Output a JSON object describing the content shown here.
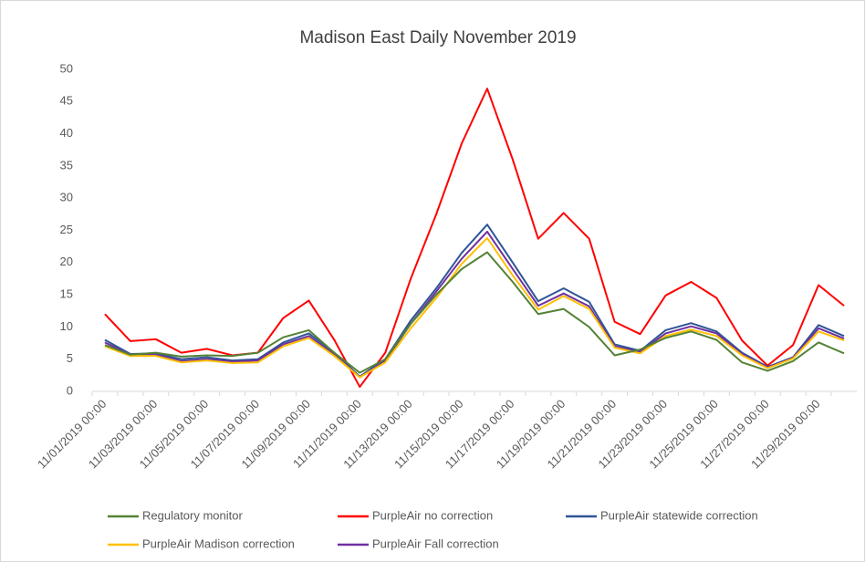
{
  "chart_data": {
    "type": "line",
    "title": "Madison East Daily November 2019",
    "categories": [
      "11/01/2019 00:00",
      null,
      "11/03/2019 00:00",
      null,
      "11/05/2019 00:00",
      null,
      "11/07/2019 00:00",
      null,
      "11/09/2019 00:00",
      null,
      "11/11/2019 00:00",
      null,
      "11/13/2019 00:00",
      null,
      "11/15/2019 00:00",
      null,
      "11/17/2019 00:00",
      null,
      "11/19/2019 00:00",
      null,
      "11/21/2019 00:00",
      null,
      "11/23/2019 00:00",
      null,
      "11/25/2019 00:00",
      null,
      "11/27/2019 00:00",
      null,
      "11/29/2019 00:00",
      null
    ],
    "series": [
      {
        "name": "PurpleAir no correction",
        "color": "#ff0000",
        "values": [
          12,
          7.8,
          8.1,
          6,
          6.6,
          5.6,
          6,
          11.4,
          14.1,
          8,
          0.7,
          6,
          17.5,
          27.5,
          38.5,
          47,
          36,
          23.7,
          27.7,
          23.7,
          10.8,
          8.9,
          14.9,
          17,
          14.5,
          7.9,
          4,
          7.2,
          16.5,
          13.3
        ]
      },
      {
        "name": "PurpleAir statewide correction",
        "color": "#2f5597",
        "values": [
          8,
          5.8,
          5.9,
          5,
          5.3,
          4.8,
          5,
          7.6,
          9,
          6,
          2.3,
          5,
          11,
          16,
          21.5,
          25.9,
          20,
          14,
          16,
          13.9,
          7.3,
          6.3,
          9.5,
          10.6,
          9.3,
          6,
          3.8,
          5.3,
          10.3,
          8.6
        ]
      },
      {
        "name": "PurpleAir Fall correction",
        "color": "#7030a0",
        "values": [
          7.6,
          5.7,
          5.7,
          4.7,
          5,
          4.6,
          4.8,
          7.3,
          8.6,
          5.7,
          2.2,
          4.7,
          10.5,
          15.5,
          20.6,
          24.8,
          19,
          13.3,
          15.2,
          13.2,
          7,
          6.1,
          9,
          10.1,
          9,
          5.8,
          3.7,
          5.2,
          9.8,
          8.2
        ]
      },
      {
        "name": "PurpleAir Madison correction",
        "color": "#ffc000",
        "values": [
          7,
          5.5,
          5.5,
          4.5,
          4.8,
          4.4,
          4.5,
          7,
          8.3,
          5.5,
          2.2,
          4.5,
          9.8,
          14.5,
          19.8,
          23.8,
          18,
          12.7,
          14.8,
          12.8,
          6.8,
          5.9,
          8.6,
          9.6,
          8.6,
          5.6,
          3.6,
          5.1,
          9.3,
          7.9
        ]
      },
      {
        "name": "Regulatory monitor",
        "color": "#548235",
        "values": [
          7.2,
          5.7,
          6,
          5.4,
          5.6,
          5.5,
          6,
          8.4,
          9.5,
          6,
          2.9,
          5,
          10.5,
          15,
          19,
          21.6,
          17,
          12,
          12.8,
          10,
          5.6,
          6.5,
          8.3,
          9.3,
          8,
          4.5,
          3.2,
          4.7,
          7.6,
          5.9
        ]
      }
    ],
    "ylim": [
      0,
      50
    ],
    "yticks": [
      0,
      5,
      10,
      15,
      20,
      25,
      30,
      35,
      40,
      45,
      50
    ],
    "grid": false
  }
}
